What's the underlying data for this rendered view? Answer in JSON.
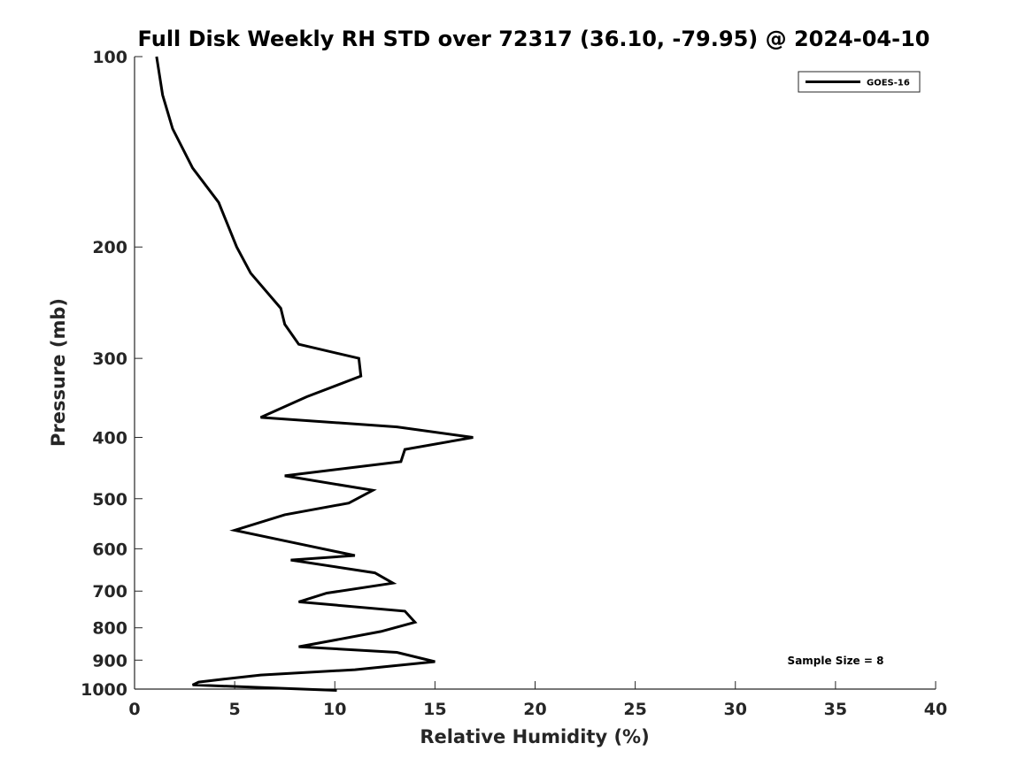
{
  "chart_data": {
    "type": "line",
    "title": "Full Disk Weekly RH STD over 72317 (36.10, -79.95) @ 2024-04-10",
    "xlabel": "Relative Humidity (%)",
    "ylabel": "Pressure (mb)",
    "xlim": [
      0,
      40
    ],
    "ylim": [
      1000,
      100
    ],
    "y_scale": "log",
    "grid": false,
    "legend_position": "top-right",
    "x_ticks": [
      0,
      5,
      10,
      15,
      20,
      25,
      30,
      35,
      40
    ],
    "y_ticks": [
      100,
      200,
      300,
      400,
      500,
      600,
      700,
      800,
      900,
      1000
    ],
    "series": [
      {
        "name": "GOES-16",
        "color": "#000000",
        "x": [
          1.1,
          1.4,
          1.9,
          2.9,
          4.2,
          5.1,
          5.8,
          7.3,
          7.5,
          8.2,
          11.2,
          11.3,
          8.6,
          6.3,
          13.1,
          16.9,
          13.5,
          13.3,
          7.5,
          11.9,
          10.7,
          7.5,
          5.0,
          8.3,
          11.0,
          7.8,
          12.0,
          12.9,
          9.6,
          8.2,
          13.5,
          14.0,
          12.3,
          9.7,
          8.2,
          13.1,
          15.0,
          11.0,
          6.3,
          4.4,
          3.2,
          2.9,
          10.1
        ],
        "y": [
          100,
          115,
          130,
          150,
          170,
          200,
          220,
          250,
          265,
          285,
          300,
          320,
          345,
          372,
          385,
          400,
          418,
          437,
          460,
          485,
          508,
          530,
          561,
          590,
          615,
          625,
          655,
          680,
          705,
          728,
          753,
          784,
          811,
          840,
          857,
          875,
          905,
          932,
          950,
          965,
          975,
          985,
          1005
        ]
      }
    ],
    "annotations": [
      "Sample Size = 8"
    ]
  }
}
